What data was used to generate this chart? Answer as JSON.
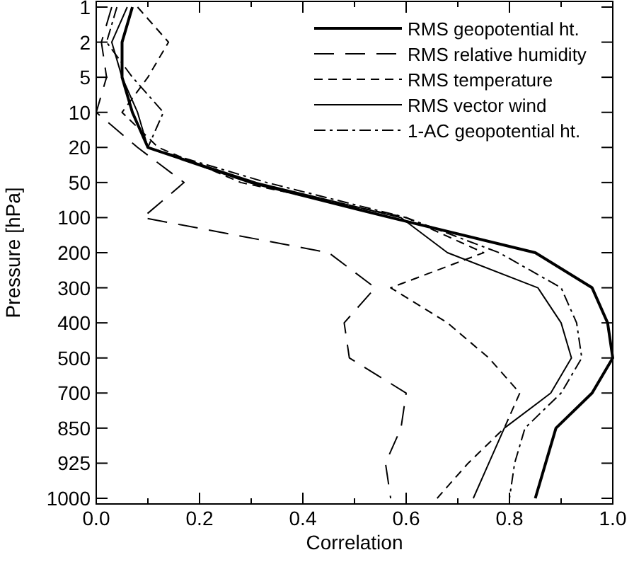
{
  "chart_data": {
    "type": "line",
    "orientation": "horizontal",
    "xlabel": "Correlation",
    "ylabel": "Pressure [hPa]",
    "categories": [
      "1",
      "2",
      "5",
      "10",
      "20",
      "50",
      "100",
      "200",
      "300",
      "400",
      "500",
      "700",
      "850",
      "925",
      "1000"
    ],
    "xlim": [
      0,
      1
    ],
    "xticks": [
      {
        "value": 0,
        "label": "0.0"
      },
      {
        "value": 0.1,
        "label": null
      },
      {
        "value": 0.2,
        "label": "0.2"
      },
      {
        "value": 0.3,
        "label": null
      },
      {
        "value": 0.4,
        "label": "0.4"
      },
      {
        "value": 0.5,
        "label": null
      },
      {
        "value": 0.6,
        "label": "0.6"
      },
      {
        "value": 0.7,
        "label": null
      },
      {
        "value": 0.8,
        "label": "0.8"
      },
      {
        "value": 0.9,
        "label": null
      },
      {
        "value": 1,
        "label": "1.0"
      }
    ],
    "legend": "top right",
    "grid": false,
    "marker": "none",
    "series": [
      {
        "name": "RMS geopotential ht.",
        "color": "#000000",
        "line_style": "solid",
        "values": [
          0.07,
          0.05,
          0.05,
          0.07,
          0.1,
          0.3,
          0.57,
          0.85,
          0.96,
          0.99,
          1.0,
          0.96,
          0.89,
          0.87,
          0.85
        ]
      },
      {
        "name": "RMS relative humidity",
        "color": "#000000",
        "line_style": "longdash",
        "values": [
          0.03,
          0.01,
          0.02,
          0.0,
          0.08,
          0.17,
          0.09,
          0.45,
          0.54,
          0.48,
          0.49,
          0.6,
          0.59,
          0.56,
          0.57
        ]
      },
      {
        "name": "RMS temperature",
        "color": "#000000",
        "line_style": "dashed",
        "values": [
          0.08,
          0.14,
          0.1,
          0.05,
          0.12,
          0.28,
          0.6,
          0.75,
          0.57,
          0.68,
          0.76,
          0.82,
          0.79,
          0.72,
          0.66
        ]
      },
      {
        "name": "RMS vector wind",
        "color": "#000000",
        "line_style": "solid",
        "values": [
          0.06,
          0.03,
          0.05,
          0.08,
          0.1,
          0.31,
          0.59,
          0.68,
          0.855,
          0.9,
          0.92,
          0.88,
          0.79,
          0.76,
          0.73
        ]
      },
      {
        "name": "1-AC geopotential ht.",
        "color": "#000000",
        "line_style": "dashdot",
        "values": [
          0.04,
          0.02,
          0.07,
          0.13,
          0.1,
          0.33,
          0.6,
          0.78,
          0.9,
          0.93,
          0.94,
          0.9,
          0.83,
          0.81,
          0.8
        ]
      }
    ]
  }
}
